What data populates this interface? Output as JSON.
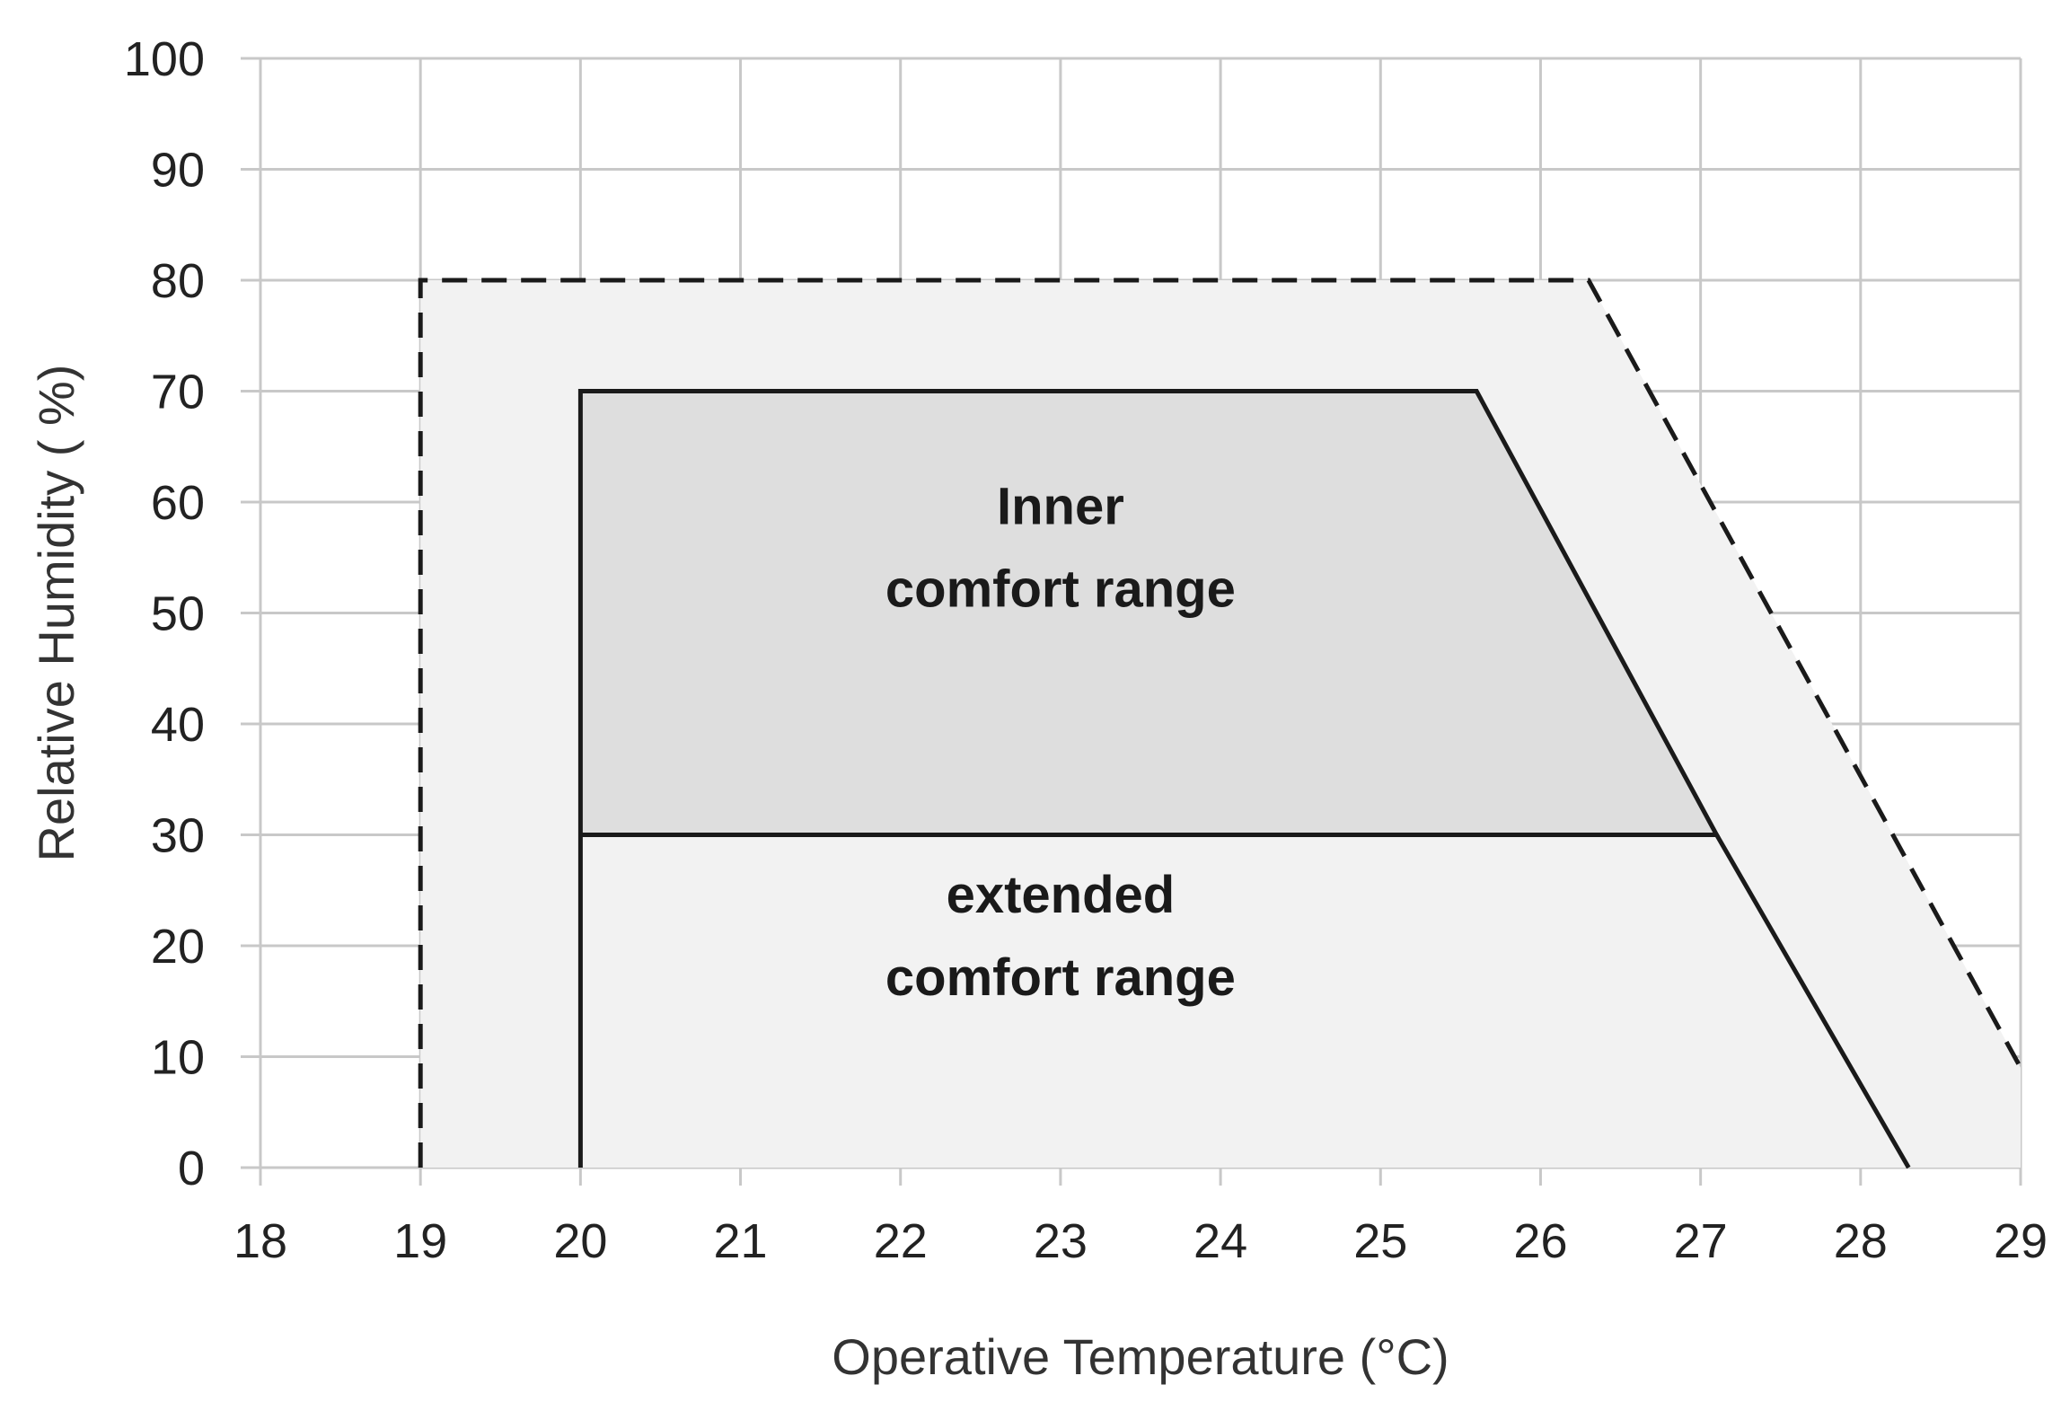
{
  "chart_data": {
    "type": "area",
    "xlabel": "Operative Temperature (°C)",
    "ylabel": "Relative Humidity ( %)",
    "xlim": [
      18,
      29
    ],
    "ylim": [
      0,
      100
    ],
    "x_ticks": [
      "18",
      "19",
      "20",
      "21",
      "22",
      "23",
      "24",
      "25",
      "26",
      "27",
      "28",
      "29"
    ],
    "y_ticks": [
      "0",
      "10",
      "20",
      "30",
      "40",
      "50",
      "60",
      "70",
      "80",
      "90",
      "100"
    ],
    "grid": true,
    "series": [
      {
        "name": "extended comfort range",
        "line_style": "dashed",
        "fill": "#f2f2f2",
        "points": [
          [
            19,
            0
          ],
          [
            19,
            80
          ],
          [
            26.3,
            80
          ],
          [
            29,
            9
          ],
          [
            29,
            0
          ]
        ]
      },
      {
        "name": "Inner comfort range",
        "line_style": "solid",
        "fill": "#dedede",
        "points": [
          [
            20,
            30
          ],
          [
            20,
            70
          ],
          [
            25.6,
            70
          ],
          [
            27.1,
            30
          ]
        ]
      }
    ],
    "extra_lines": [
      {
        "style": "solid",
        "points": [
          [
            20,
            0
          ],
          [
            20,
            30
          ]
        ]
      },
      {
        "style": "solid",
        "points": [
          [
            27.1,
            30
          ],
          [
            28.3,
            0
          ]
        ]
      }
    ],
    "annotations": [
      {
        "lines": [
          "Inner",
          "comfort range"
        ],
        "x": 23,
        "y": 58
      },
      {
        "lines": [
          "extended",
          "comfort range"
        ],
        "x": 23,
        "y": 23
      }
    ],
    "colors": {
      "grid": "#c8c8c8",
      "line": "#1a1a1a",
      "outer_fill": "#f2f2f2",
      "inner_fill": "#dedede"
    }
  }
}
